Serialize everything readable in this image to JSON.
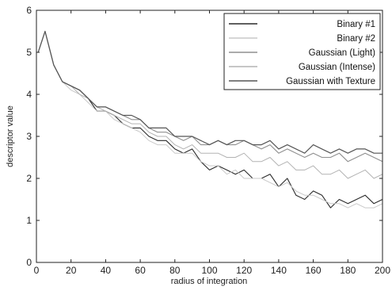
{
  "chart_data": {
    "type": "line",
    "xlabel": "radius of integration",
    "ylabel": "descriptor value",
    "xlim": [
      0,
      200
    ],
    "ylim": [
      0,
      6
    ],
    "xticks": [
      0,
      20,
      40,
      60,
      80,
      100,
      120,
      140,
      160,
      180,
      200
    ],
    "yticks": [
      0,
      1,
      2,
      3,
      4,
      5,
      6
    ],
    "grid": false,
    "legend_position": "top-right",
    "x": [
      1,
      5,
      10,
      15,
      20,
      25,
      30,
      35,
      40,
      45,
      50,
      55,
      60,
      65,
      70,
      75,
      80,
      85,
      90,
      95,
      100,
      105,
      110,
      115,
      120,
      125,
      130,
      135,
      140,
      145,
      150,
      155,
      160,
      165,
      170,
      175,
      180,
      185,
      190,
      195,
      200
    ],
    "series": [
      {
        "name": "Binary #1",
        "color": "#2a2a2a",
        "values": [
          5.0,
          5.5,
          4.7,
          4.3,
          4.2,
          4.1,
          3.9,
          3.6,
          3.6,
          3.5,
          3.3,
          3.2,
          3.2,
          3.0,
          2.9,
          2.9,
          2.7,
          2.6,
          2.7,
          2.4,
          2.2,
          2.3,
          2.2,
          2.1,
          2.2,
          2.0,
          2.0,
          2.1,
          1.8,
          2.0,
          1.6,
          1.5,
          1.7,
          1.6,
          1.3,
          1.5,
          1.4,
          1.5,
          1.6,
          1.4,
          1.5
        ]
      },
      {
        "name": "Binary #2",
        "color": "#c9c9c9",
        "values": [
          5.0,
          5.5,
          4.7,
          4.3,
          4.1,
          4.0,
          3.8,
          3.6,
          3.6,
          3.4,
          3.3,
          3.2,
          3.1,
          2.9,
          2.8,
          2.8,
          2.6,
          2.6,
          2.6,
          2.4,
          2.3,
          2.3,
          2.1,
          2.2,
          2.0,
          2.0,
          2.0,
          1.9,
          1.8,
          1.9,
          1.7,
          1.6,
          1.6,
          1.5,
          1.4,
          1.4,
          1.3,
          1.4,
          1.3,
          1.3,
          1.4
        ]
      },
      {
        "name": "Gaussian (Light)",
        "color": "#8f8f8f",
        "values": [
          5.0,
          5.5,
          4.7,
          4.3,
          4.2,
          4.1,
          3.9,
          3.7,
          3.7,
          3.6,
          3.5,
          3.4,
          3.4,
          3.2,
          3.1,
          3.1,
          3.0,
          2.9,
          3.0,
          2.8,
          2.8,
          2.9,
          2.8,
          2.8,
          2.9,
          2.8,
          2.7,
          2.8,
          2.6,
          2.7,
          2.6,
          2.5,
          2.6,
          2.5,
          2.5,
          2.6,
          2.4,
          2.5,
          2.6,
          2.5,
          2.4
        ]
      },
      {
        "name": "Gaussian (Intense)",
        "color": "#b3b3b3",
        "values": [
          5.0,
          5.5,
          4.7,
          4.3,
          4.2,
          4.0,
          3.9,
          3.7,
          3.6,
          3.5,
          3.4,
          3.3,
          3.3,
          3.1,
          3.0,
          3.0,
          2.8,
          2.7,
          2.8,
          2.6,
          2.6,
          2.6,
          2.5,
          2.5,
          2.6,
          2.4,
          2.4,
          2.5,
          2.3,
          2.4,
          2.2,
          2.2,
          2.3,
          2.1,
          2.1,
          2.2,
          2.0,
          2.1,
          2.2,
          2.0,
          2.1
        ]
      },
      {
        "name": "Gaussian with Texture",
        "color": "#555555",
        "values": [
          5.0,
          5.5,
          4.7,
          4.3,
          4.2,
          4.1,
          3.9,
          3.7,
          3.7,
          3.6,
          3.5,
          3.5,
          3.4,
          3.2,
          3.2,
          3.2,
          3.0,
          3.0,
          3.0,
          2.9,
          2.8,
          2.9,
          2.8,
          2.9,
          2.9,
          2.8,
          2.8,
          2.9,
          2.7,
          2.8,
          2.7,
          2.6,
          2.8,
          2.7,
          2.6,
          2.7,
          2.6,
          2.7,
          2.7,
          2.6,
          2.6
        ]
      }
    ]
  }
}
